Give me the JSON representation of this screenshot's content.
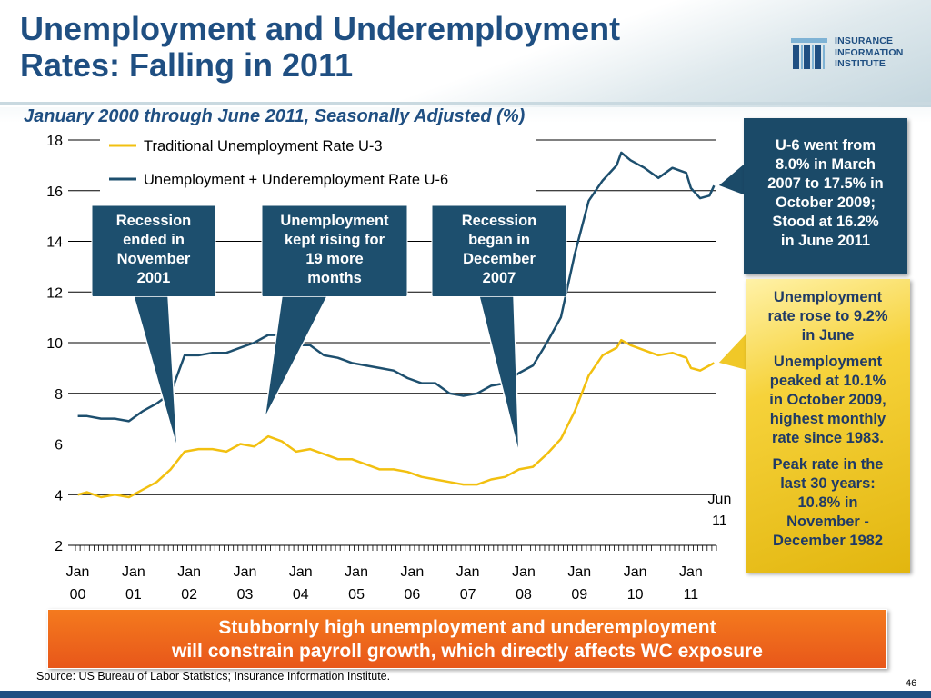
{
  "title_line1": "Unemployment and Underemployment",
  "title_line2": "Rates: Falling in 2011",
  "logo": {
    "line1": "INSURANCE",
    "line2": "INFORMATION",
    "line3": "INSTITUTE"
  },
  "colors": {
    "title": "#1f4f82",
    "u3": "#f2c010",
    "u6": "#1d4f6e",
    "banner": "#e8571a",
    "gold": "#f6d23a"
  },
  "chart_data": {
    "type": "line",
    "title": "January 2000 through June 2011, Seasonally Adjusted (%)",
    "ylim": [
      2,
      18
    ],
    "yticks": [
      "2",
      "4",
      "6",
      "8",
      "10",
      "12",
      "14",
      "16",
      "18"
    ],
    "xticks": [
      {
        "line1": "Jan",
        "line2": "00"
      },
      {
        "line1": "Jan",
        "line2": "01"
      },
      {
        "line1": "Jan",
        "line2": "02"
      },
      {
        "line1": "Jan",
        "line2": "03"
      },
      {
        "line1": "Jan",
        "line2": "04"
      },
      {
        "line1": "Jan",
        "line2": "05"
      },
      {
        "line1": "Jan",
        "line2": "06"
      },
      {
        "line1": "Jan",
        "line2": "07"
      },
      {
        "line1": "Jan",
        "line2": "08"
      },
      {
        "line1": "Jan",
        "line2": "09"
      },
      {
        "line1": "Jan",
        "line2": "10"
      },
      {
        "line1": "Jan",
        "line2": "11"
      }
    ],
    "end_label": {
      "line1": "Jun",
      "line2": "11"
    },
    "legend": [
      {
        "name": "Traditional Unemployment Rate U-3",
        "color": "#f2c010"
      },
      {
        "name": "Unemployment + Underemployment Rate U-6",
        "color": "#1d4f6e"
      }
    ],
    "x_start": "2000-01",
    "x_end": "2011-06",
    "series": [
      {
        "name": "Traditional Unemployment Rate U-3",
        "color": "#f2c010",
        "points": [
          [
            "2000-01",
            4.0
          ],
          [
            "2000-03",
            4.1
          ],
          [
            "2000-06",
            3.9
          ],
          [
            "2000-09",
            4.0
          ],
          [
            "2000-12",
            3.9
          ],
          [
            "2001-03",
            4.2
          ],
          [
            "2001-06",
            4.5
          ],
          [
            "2001-09",
            5.0
          ],
          [
            "2001-12",
            5.7
          ],
          [
            "2002-03",
            5.8
          ],
          [
            "2002-06",
            5.8
          ],
          [
            "2002-09",
            5.7
          ],
          [
            "2002-12",
            6.0
          ],
          [
            "2003-03",
            5.9
          ],
          [
            "2003-06",
            6.3
          ],
          [
            "2003-09",
            6.1
          ],
          [
            "2003-12",
            5.7
          ],
          [
            "2004-03",
            5.8
          ],
          [
            "2004-06",
            5.6
          ],
          [
            "2004-09",
            5.4
          ],
          [
            "2004-12",
            5.4
          ],
          [
            "2005-03",
            5.2
          ],
          [
            "2005-06",
            5.0
          ],
          [
            "2005-09",
            5.0
          ],
          [
            "2005-12",
            4.9
          ],
          [
            "2006-03",
            4.7
          ],
          [
            "2006-06",
            4.6
          ],
          [
            "2006-09",
            4.5
          ],
          [
            "2006-12",
            4.4
          ],
          [
            "2007-03",
            4.4
          ],
          [
            "2007-06",
            4.6
          ],
          [
            "2007-09",
            4.7
          ],
          [
            "2007-12",
            5.0
          ],
          [
            "2008-03",
            5.1
          ],
          [
            "2008-06",
            5.6
          ],
          [
            "2008-09",
            6.2
          ],
          [
            "2008-12",
            7.3
          ],
          [
            "2009-03",
            8.7
          ],
          [
            "2009-06",
            9.5
          ],
          [
            "2009-09",
            9.8
          ],
          [
            "2009-10",
            10.1
          ],
          [
            "2009-12",
            9.9
          ],
          [
            "2010-03",
            9.7
          ],
          [
            "2010-06",
            9.5
          ],
          [
            "2010-09",
            9.6
          ],
          [
            "2010-12",
            9.4
          ],
          [
            "2011-01",
            9.0
          ],
          [
            "2011-03",
            8.9
          ],
          [
            "2011-05",
            9.1
          ],
          [
            "2011-06",
            9.2
          ]
        ]
      },
      {
        "name": "Unemployment + Underemployment Rate U-6",
        "color": "#1d4f6e",
        "points": [
          [
            "2000-01",
            7.1
          ],
          [
            "2000-03",
            7.1
          ],
          [
            "2000-06",
            7.0
          ],
          [
            "2000-09",
            7.0
          ],
          [
            "2000-12",
            6.9
          ],
          [
            "2001-03",
            7.3
          ],
          [
            "2001-06",
            7.6
          ],
          [
            "2001-09",
            8.0
          ],
          [
            "2001-12",
            9.5
          ],
          [
            "2002-03",
            9.5
          ],
          [
            "2002-06",
            9.6
          ],
          [
            "2002-09",
            9.6
          ],
          [
            "2002-12",
            9.8
          ],
          [
            "2003-03",
            10.0
          ],
          [
            "2003-06",
            10.3
          ],
          [
            "2003-09",
            10.3
          ],
          [
            "2003-12",
            9.9
          ],
          [
            "2004-03",
            9.9
          ],
          [
            "2004-06",
            9.5
          ],
          [
            "2004-09",
            9.4
          ],
          [
            "2004-12",
            9.2
          ],
          [
            "2005-03",
            9.1
          ],
          [
            "2005-06",
            9.0
          ],
          [
            "2005-09",
            8.9
          ],
          [
            "2005-12",
            8.6
          ],
          [
            "2006-03",
            8.4
          ],
          [
            "2006-06",
            8.4
          ],
          [
            "2006-09",
            8.0
          ],
          [
            "2006-12",
            7.9
          ],
          [
            "2007-03",
            8.0
          ],
          [
            "2007-06",
            8.3
          ],
          [
            "2007-09",
            8.4
          ],
          [
            "2007-12",
            8.8
          ],
          [
            "2008-03",
            9.1
          ],
          [
            "2008-06",
            10.0
          ],
          [
            "2008-09",
            11.0
          ],
          [
            "2008-12",
            13.5
          ],
          [
            "2009-03",
            15.6
          ],
          [
            "2009-06",
            16.4
          ],
          [
            "2009-09",
            17.0
          ],
          [
            "2009-10",
            17.5
          ],
          [
            "2009-12",
            17.2
          ],
          [
            "2010-03",
            16.9
          ],
          [
            "2010-06",
            16.5
          ],
          [
            "2010-09",
            16.9
          ],
          [
            "2010-12",
            16.7
          ],
          [
            "2011-01",
            16.1
          ],
          [
            "2011-03",
            15.7
          ],
          [
            "2011-05",
            15.8
          ],
          [
            "2011-06",
            16.2
          ]
        ]
      }
    ],
    "annotations": [
      {
        "text": [
          "Recession",
          "ended in",
          "November",
          "2001"
        ],
        "x": "2001-11"
      },
      {
        "text": [
          "Unemployment",
          "kept rising for",
          "19 more",
          "months"
        ],
        "x": "2003-06"
      },
      {
        "text": [
          "Recession",
          "began in",
          "December",
          "2007"
        ],
        "x": "2007-12"
      }
    ]
  },
  "callout_u6": [
    "U-6 went from",
    "8.0% in March",
    "2007 to 17.5% in",
    "October 2009;",
    "Stood at 16.2%",
    "in June 2011"
  ],
  "callout_gold": {
    "p1": [
      "Unemployment",
      "rate rose to 9.2%",
      "in June"
    ],
    "p2": [
      "Unemployment",
      "peaked at 10.1%",
      "in October 2009,",
      "highest monthly",
      "rate since 1983."
    ],
    "p3": [
      "Peak rate in the",
      "last 30 years:",
      "10.8% in",
      "November -",
      "December 1982"
    ]
  },
  "banner": {
    "line1": "Stubbornly high unemployment and underemployment",
    "line2": "will constrain payroll growth, which directly affects WC exposure"
  },
  "source": "Source: US Bureau of Labor Statistics; Insurance Information Institute.",
  "page_number": "46"
}
